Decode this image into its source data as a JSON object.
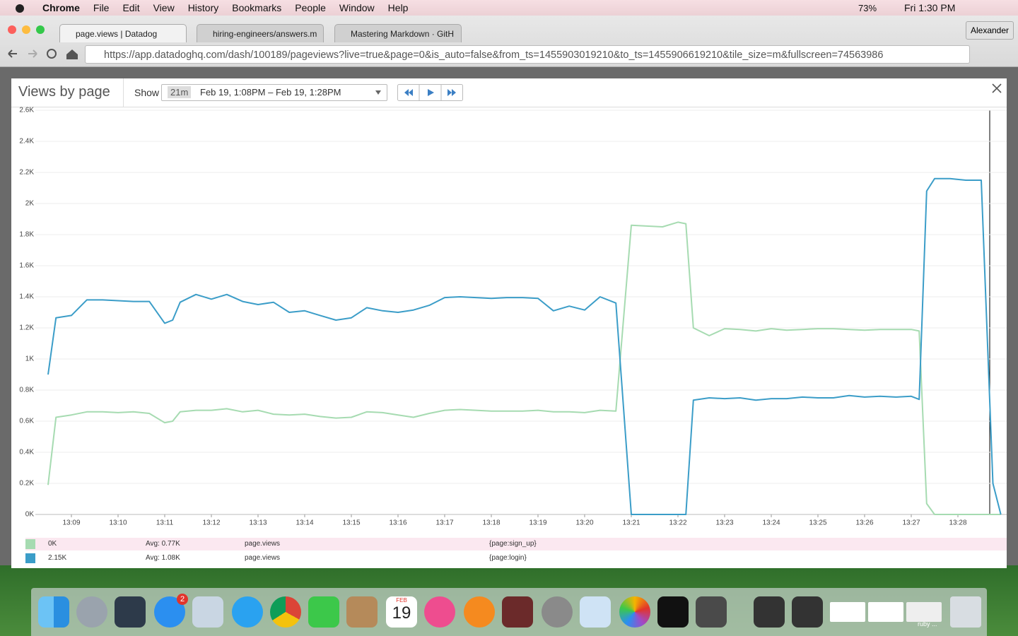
{
  "menu_bar": {
    "app": "Chrome",
    "items": [
      "File",
      "Edit",
      "View",
      "History",
      "Bookmarks",
      "People",
      "Window",
      "Help"
    ],
    "battery": "73%",
    "clock": "Fri 1:30 PM"
  },
  "browser": {
    "tabs": [
      "page.views | Datadog",
      "hiring-engineers/answers.m",
      "Mastering Markdown · GitH"
    ],
    "profile": "Alexander",
    "url": "https://app.datadoghq.com/dash/100189/pageviews?live=true&page=0&is_auto=false&from_ts=1455903019210&to_ts=1455906619210&tile_size=m&fullscreen=74563986"
  },
  "modal": {
    "title": "Views by page",
    "show_label": "Show",
    "range_badge": "21m",
    "range": "Feb 19, 1:08PM – Feb 19, 1:28PM"
  },
  "chart_data": {
    "type": "line",
    "x": [
      8.5,
      8.67,
      9,
      9.33,
      9.67,
      10,
      10.33,
      10.67,
      11,
      11.17,
      11.33,
      11.67,
      12,
      12.33,
      12.67,
      13,
      13.33,
      13.67,
      14,
      14.33,
      14.67,
      15,
      15.33,
      15.67,
      16,
      16.33,
      16.67,
      17,
      17.33,
      17.67,
      18,
      18.33,
      18.67,
      19,
      19.33,
      19.67,
      20,
      20.33,
      20.67,
      21,
      21.33,
      21.67,
      22,
      22.17,
      22.33,
      22.67,
      23,
      23.33,
      23.67,
      24,
      24.33,
      24.67,
      25,
      25.33,
      25.67,
      26,
      26.33,
      26.67,
      27,
      27.17,
      27.33,
      27.5,
      27.83,
      28.17,
      28.5,
      28.75,
      28.92
    ],
    "series": [
      {
        "name": "{page:sign_up}",
        "color": "#a6dbb1",
        "values": [
          190,
          625,
          640,
          660,
          660,
          655,
          660,
          650,
          590,
          600,
          660,
          670,
          670,
          680,
          660,
          670,
          645,
          640,
          645,
          630,
          620,
          625,
          660,
          655,
          640,
          625,
          650,
          670,
          675,
          670,
          665,
          665,
          665,
          670,
          660,
          660,
          655,
          670,
          665,
          1860,
          1855,
          1850,
          1880,
          1870,
          1200,
          1150,
          1195,
          1190,
          1180,
          1195,
          1185,
          1190,
          1195,
          1195,
          1190,
          1185,
          1190,
          1190,
          1190,
          1180,
          70,
          0,
          0,
          0,
          0,
          0,
          0
        ]
      },
      {
        "name": "{page:login}",
        "color": "#3b9dc8",
        "values": [
          900,
          1265,
          1280,
          1380,
          1380,
          1375,
          1370,
          1370,
          1230,
          1250,
          1365,
          1415,
          1385,
          1415,
          1370,
          1350,
          1365,
          1300,
          1310,
          1280,
          1250,
          1265,
          1330,
          1310,
          1300,
          1315,
          1345,
          1395,
          1400,
          1395,
          1390,
          1395,
          1395,
          1390,
          1310,
          1340,
          1315,
          1400,
          1360,
          0,
          0,
          0,
          0,
          0,
          735,
          750,
          745,
          750,
          735,
          745,
          745,
          755,
          750,
          750,
          765,
          755,
          760,
          755,
          760,
          740,
          2080,
          2160,
          2160,
          2150,
          2150,
          200,
          0
        ]
      }
    ],
    "legend_rows": [
      {
        "current": "0K",
        "avg": "Avg: 0.77K",
        "metric": "page.views"
      },
      {
        "current": "2.15K",
        "avg": "Avg: 1.08K",
        "metric": "page.views"
      }
    ],
    "xlim": [
      8.5,
      29.0
    ],
    "xticks": [
      {
        "value": 9,
        "label": "13:09"
      },
      {
        "value": 10,
        "label": "13:10"
      },
      {
        "value": 11,
        "label": "13:11"
      },
      {
        "value": 12,
        "label": "13:12"
      },
      {
        "value": 13,
        "label": "13:13"
      },
      {
        "value": 14,
        "label": "13:14"
      },
      {
        "value": 15,
        "label": "13:15"
      },
      {
        "value": 16,
        "label": "13:16"
      },
      {
        "value": 17,
        "label": "13:17"
      },
      {
        "value": 18,
        "label": "13:18"
      },
      {
        "value": 19,
        "label": "13:19"
      },
      {
        "value": 20,
        "label": "13:20"
      },
      {
        "value": 21,
        "label": "13:21"
      },
      {
        "value": 22,
        "label": "13:22"
      },
      {
        "value": 23,
        "label": "13:23"
      },
      {
        "value": 24,
        "label": "13:24"
      },
      {
        "value": 25,
        "label": "13:25"
      },
      {
        "value": 26,
        "label": "13:26"
      },
      {
        "value": 27,
        "label": "13:27"
      },
      {
        "value": 28,
        "label": "13:28"
      }
    ],
    "ylim": [
      0,
      2600
    ],
    "yticks": [
      {
        "value": 0,
        "label": "0K"
      },
      {
        "value": 200,
        "label": "0.2K"
      },
      {
        "value": 400,
        "label": "0.4K"
      },
      {
        "value": 600,
        "label": "0.6K"
      },
      {
        "value": 800,
        "label": "0.8K"
      },
      {
        "value": 1000,
        "label": "1K"
      },
      {
        "value": 1200,
        "label": "1.2K"
      },
      {
        "value": 1400,
        "label": "1.4K"
      },
      {
        "value": 1600,
        "label": "1.6K"
      },
      {
        "value": 1800,
        "label": "1.8K"
      },
      {
        "value": 2000,
        "label": "2K"
      },
      {
        "value": 2200,
        "label": "2.2K"
      },
      {
        "value": 2400,
        "label": "2.4K"
      },
      {
        "value": 2600,
        "label": "2.6K"
      }
    ],
    "grid": true
  },
  "dock": {
    "badge": "2",
    "calendar_month": "FEB",
    "calendar_day": "19",
    "window_label": "ruby ..."
  }
}
